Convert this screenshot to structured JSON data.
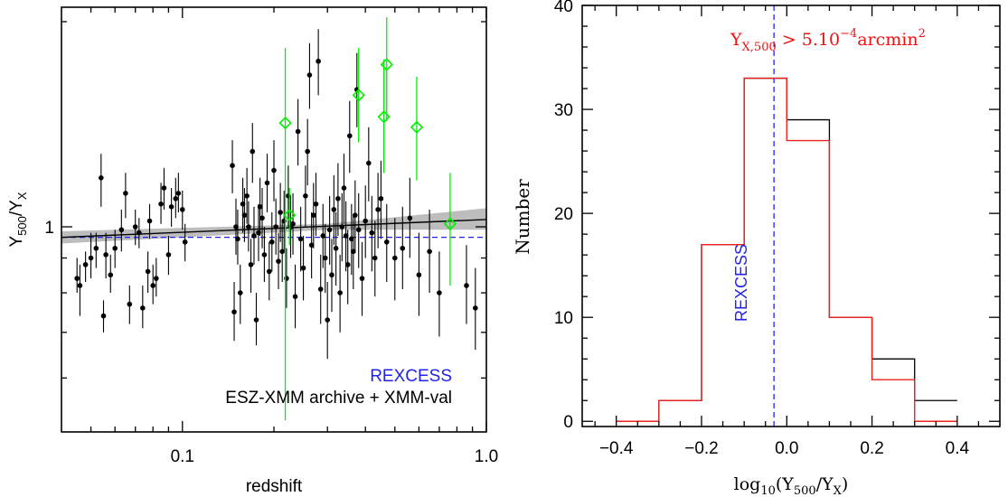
{
  "chart_data": [
    {
      "type": "scatter",
      "xlabel": "redshift",
      "ylabel_main": "Y",
      "ylabel_sub1": "500",
      "ylabel_mid": "/Y",
      "ylabel_sub2": "X",
      "x_scale": "log",
      "y_scale": "log",
      "xlim": [
        0.04,
        1.0
      ],
      "ylim": [
        0.5,
        2.1
      ],
      "x_ticks": [
        0.1,
        1.0
      ],
      "x_tick_labels": [
        "0.1",
        "1.0"
      ],
      "y_ticks": [
        1
      ],
      "y_tick_labels": [
        "1"
      ],
      "legend": [
        {
          "label": "REXCESS",
          "color": "#2222ee"
        },
        {
          "label": "ESZ-XMM archive + XMM-val",
          "color": "#000000"
        }
      ],
      "legend_placement": "bottom-right",
      "colors": {
        "archive": "#000000",
        "validation": "#00ee00",
        "rexcess": "#2222ee",
        "fit_band": "#bdbdbd"
      },
      "fit_line": {
        "z": [
          0.04,
          1.0
        ],
        "ratio": [
          0.965,
          1.025
        ]
      },
      "fit_band": {
        "z": [
          0.04,
          0.3,
          1.0
        ],
        "lower": [
          0.945,
          0.99,
          0.99
        ],
        "upper": [
          0.985,
          1.01,
          1.065
        ]
      },
      "rexcess_level": 0.965,
      "series": [
        {
          "marker": "filled-circle",
          "color": "#000000",
          "points": [
            [
              0.045,
              0.84,
              0.8,
              0.9
            ],
            [
              0.046,
              0.82,
              0.74,
              0.88
            ],
            [
              0.048,
              0.88,
              0.83,
              0.92
            ],
            [
              0.05,
              0.9,
              0.84,
              0.98
            ],
            [
              0.052,
              0.93,
              0.87,
              0.98
            ],
            [
              0.054,
              1.18,
              1.07,
              1.28
            ],
            [
              0.055,
              0.74,
              0.7,
              0.78
            ],
            [
              0.056,
              0.91,
              0.84,
              0.98
            ],
            [
              0.058,
              0.85,
              0.8,
              0.91
            ],
            [
              0.06,
              0.93,
              0.87,
              0.99
            ],
            [
              0.063,
              0.99,
              0.92,
              1.06
            ],
            [
              0.065,
              1.12,
              1.03,
              1.2
            ],
            [
              0.067,
              0.77,
              0.72,
              0.82
            ],
            [
              0.07,
              1.0,
              0.94,
              1.06
            ],
            [
              0.072,
              0.98,
              0.93,
              1.03
            ],
            [
              0.074,
              0.76,
              0.71,
              0.82
            ],
            [
              0.077,
              0.86,
              0.8,
              0.92
            ],
            [
              0.078,
              1.02,
              0.96,
              1.08
            ],
            [
              0.08,
              0.82,
              0.77,
              0.88
            ],
            [
              0.082,
              0.84,
              0.79,
              0.9
            ],
            [
              0.085,
              1.08,
              1.01,
              1.16
            ],
            [
              0.087,
              1.14,
              1.06,
              1.22
            ],
            [
              0.09,
              0.91,
              0.85,
              0.97
            ],
            [
              0.092,
              1.07,
              1.0,
              1.14
            ],
            [
              0.095,
              1.1,
              1.03,
              1.18
            ],
            [
              0.097,
              1.12,
              1.05,
              1.2
            ],
            [
              0.1,
              1.06,
              0.99,
              1.13
            ],
            [
              0.102,
              0.95,
              0.89,
              1.01
            ],
            [
              0.146,
              1.23,
              1.12,
              1.34
            ],
            [
              0.148,
              0.75,
              0.68,
              0.83
            ],
            [
              0.15,
              1.0,
              0.91,
              1.1
            ],
            [
              0.152,
              0.96,
              0.88,
              1.06
            ],
            [
              0.155,
              0.8,
              0.72,
              0.88
            ],
            [
              0.158,
              1.08,
              0.98,
              1.18
            ],
            [
              0.16,
              1.04,
              0.95,
              1.14
            ],
            [
              0.163,
              1.11,
              1.01,
              1.22
            ],
            [
              0.165,
              1.0,
              0.92,
              1.09
            ],
            [
              0.168,
              0.88,
              0.8,
              0.96
            ],
            [
              0.17,
              1.29,
              1.16,
              1.42
            ],
            [
              0.172,
              0.97,
              0.88,
              1.07
            ],
            [
              0.175,
              0.73,
              0.67,
              0.8
            ],
            [
              0.178,
              0.98,
              0.89,
              1.08
            ],
            [
              0.18,
              1.07,
              0.97,
              1.18
            ],
            [
              0.183,
              1.03,
              0.93,
              1.14
            ],
            [
              0.186,
              0.91,
              0.83,
              1.0
            ],
            [
              0.19,
              1.16,
              1.05,
              1.28
            ],
            [
              0.193,
              0.86,
              0.78,
              0.95
            ],
            [
              0.197,
              0.95,
              0.86,
              1.05
            ],
            [
              0.2,
              1.21,
              1.09,
              1.34
            ],
            [
              0.203,
              1.0,
              0.91,
              1.1
            ],
            [
              0.207,
              0.89,
              0.81,
              0.98
            ],
            [
              0.21,
              1.05,
              0.95,
              1.16
            ],
            [
              0.213,
              0.92,
              0.83,
              1.02
            ],
            [
              0.216,
              1.02,
              0.92,
              1.13
            ],
            [
              0.22,
              0.84,
              0.76,
              0.93
            ],
            [
              0.223,
              1.11,
              1.0,
              1.23
            ],
            [
              0.227,
              1.0,
              0.9,
              1.11
            ],
            [
              0.231,
              1.01,
              0.91,
              1.12
            ],
            [
              0.235,
              0.79,
              0.71,
              0.88
            ],
            [
              0.24,
              1.38,
              1.23,
              1.54
            ],
            [
              0.245,
              0.96,
              0.86,
              1.07
            ],
            [
              0.25,
              0.87,
              0.78,
              0.97
            ],
            [
              0.254,
              1.11,
              1.0,
              1.23
            ],
            [
              0.258,
              1.29,
              1.15,
              1.44
            ],
            [
              0.262,
              1.67,
              1.49,
              1.86
            ],
            [
              0.266,
              0.94,
              0.84,
              1.05
            ],
            [
              0.27,
              1.04,
              0.93,
              1.16
            ],
            [
              0.275,
              1.08,
              0.97,
              1.2
            ],
            [
              0.28,
              1.75,
              1.56,
              1.95
            ],
            [
              0.285,
              0.81,
              0.72,
              0.91
            ],
            [
              0.29,
              0.97,
              0.87,
              1.08
            ],
            [
              0.295,
              0.9,
              0.8,
              1.01
            ],
            [
              0.3,
              0.73,
              0.64,
              0.83
            ],
            [
              0.305,
              0.99,
              0.88,
              1.11
            ],
            [
              0.31,
              0.85,
              0.75,
              0.96
            ],
            [
              0.315,
              1.06,
              0.94,
              1.19
            ],
            [
              0.32,
              0.93,
              0.82,
              1.05
            ],
            [
              0.325,
              1.1,
              0.97,
              1.24
            ],
            [
              0.33,
              0.8,
              0.7,
              0.91
            ],
            [
              0.335,
              1.0,
              0.89,
              1.12
            ],
            [
              0.34,
              1.14,
              1.01,
              1.28
            ],
            [
              0.345,
              0.97,
              0.86,
              1.09
            ],
            [
              0.35,
              0.88,
              0.77,
              0.99
            ],
            [
              0.355,
              1.36,
              1.2,
              1.53
            ],
            [
              0.36,
              0.96,
              0.85,
              1.08
            ],
            [
              0.365,
              0.92,
              0.81,
              1.04
            ],
            [
              0.37,
              1.04,
              0.92,
              1.17
            ],
            [
              0.375,
              1.59,
              1.4,
              1.8
            ],
            [
              0.38,
              0.99,
              0.87,
              1.12
            ],
            [
              0.39,
              0.84,
              0.74,
              0.95
            ],
            [
              0.4,
              1.02,
              0.9,
              1.15
            ],
            [
              0.41,
              1.24,
              1.09,
              1.4
            ],
            [
              0.42,
              0.98,
              0.86,
              1.11
            ],
            [
              0.43,
              0.9,
              0.79,
              1.02
            ],
            [
              0.44,
              1.06,
              0.93,
              1.2
            ],
            [
              0.45,
              1.1,
              0.96,
              1.25
            ],
            [
              0.47,
              0.95,
              0.83,
              1.08
            ],
            [
              0.5,
              0.9,
              0.78,
              1.03
            ],
            [
              0.53,
              0.93,
              0.81,
              1.07
            ],
            [
              0.56,
              1.03,
              0.9,
              1.18
            ],
            [
              0.6,
              0.85,
              0.74,
              0.98
            ],
            [
              0.65,
              0.92,
              0.8,
              1.06
            ],
            [
              0.7,
              0.8,
              0.69,
              0.92
            ],
            [
              0.86,
              0.82,
              0.72,
              0.94
            ],
            [
              0.92,
              0.76,
              0.66,
              0.87
            ]
          ]
        },
        {
          "marker": "open-diamond",
          "color": "#00ee00",
          "points": [
            [
              0.218,
              1.42,
              0.52,
              1.83
            ],
            [
              0.225,
              1.04,
              0.94,
              1.14
            ],
            [
              0.38,
              1.56,
              1.33,
              1.83
            ],
            [
              0.46,
              1.45,
              1.2,
              1.76
            ],
            [
              0.47,
              1.73,
              1.43,
              2.03
            ],
            [
              0.59,
              1.4,
              1.17,
              1.66
            ],
            [
              0.76,
              1.01,
              0.82,
              1.2
            ]
          ]
        }
      ]
    },
    {
      "type": "bar",
      "xlabel_pre": "log",
      "xlabel_sub10": "10",
      "xlabel_mid": "(Y",
      "xlabel_sub1": "500",
      "xlabel_slash": "/Y",
      "xlabel_sub2": "X",
      "xlabel_close": ")",
      "ylabel": "Number",
      "xlim": [
        -0.48,
        0.5
      ],
      "ylim": [
        -0.5,
        40
      ],
      "x_ticks": [
        -0.4,
        -0.2,
        0.0,
        0.2,
        0.4
      ],
      "x_tick_labels": [
        "−0.4",
        "−0.2",
        "0.0",
        "0.2",
        "0.4"
      ],
      "y_ticks": [
        0,
        10,
        20,
        30,
        40
      ],
      "y_tick_labels": [
        "0",
        "10",
        "20",
        "30",
        "40"
      ],
      "bin_edges": [
        -0.4,
        -0.3,
        -0.2,
        -0.1,
        0.0,
        0.1,
        0.2,
        0.3,
        0.4
      ],
      "series": [
        {
          "color": "#000000",
          "values": [
            0,
            2,
            17,
            33,
            29,
            10,
            6,
            2
          ]
        },
        {
          "color": "#ee2222",
          "values": [
            0,
            2,
            17,
            33,
            27,
            10,
            4,
            0
          ]
        }
      ],
      "rexcess_line_x": -0.03,
      "annotation_rexcess": "REXCESS",
      "annotation_threshold_main": "Y",
      "annotation_threshold_sub": "X,500",
      "annotation_threshold_rel": " > 5.10",
      "annotation_threshold_exp": "−4",
      "annotation_threshold_unit": "arcmin",
      "annotation_threshold_unit_exp": "2",
      "colors": {
        "black_hist": "#000000",
        "red_hist": "#ee2222",
        "rexcess": "#2222ee",
        "threshold": "#ee1111"
      }
    }
  ]
}
